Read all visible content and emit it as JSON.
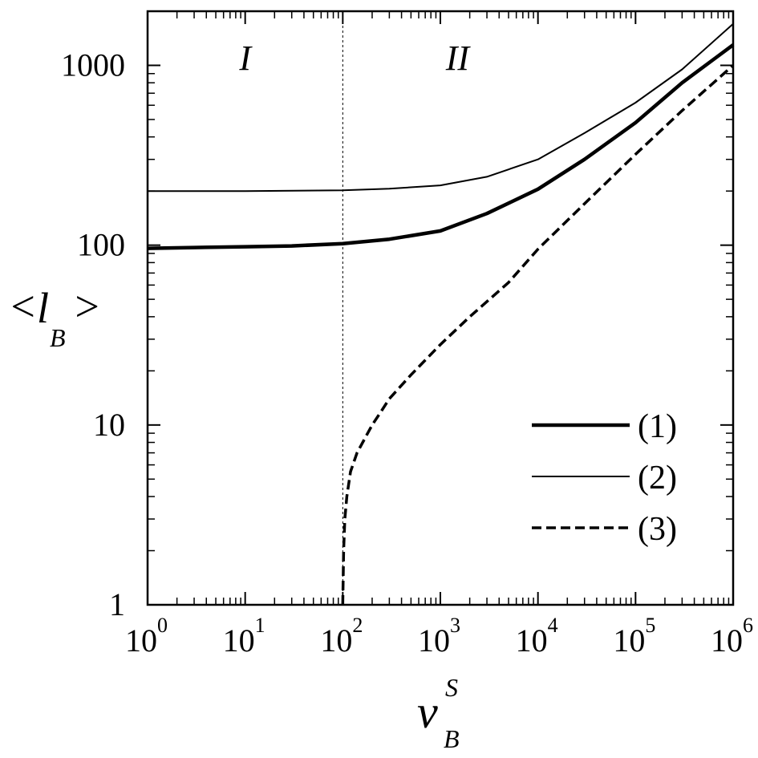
{
  "chart_data": {
    "type": "line",
    "title": "",
    "xscale": "log",
    "yscale": "log",
    "xlim": [
      1,
      1000000
    ],
    "ylim": [
      1,
      2000
    ],
    "xticks": [
      {
        "base": "10",
        "exp": "0"
      },
      {
        "base": "10",
        "exp": "1"
      },
      {
        "base": "10",
        "exp": "2"
      },
      {
        "base": "10",
        "exp": "3"
      },
      {
        "base": "10",
        "exp": "4"
      },
      {
        "base": "10",
        "exp": "5"
      },
      {
        "base": "10",
        "exp": "6"
      }
    ],
    "xtick_values": [
      1,
      10,
      100,
      1000,
      10000,
      100000,
      1000000
    ],
    "yticks": [
      "1",
      "10",
      "100",
      "1000"
    ],
    "ytick_values": [
      1,
      10,
      100,
      1000
    ],
    "xlabel": {
      "main": "v",
      "sup": "S",
      "sub": "B"
    },
    "ylabel": {
      "open": "<",
      "main": "l",
      "sub": "B",
      "close": ">"
    },
    "grid": false,
    "vline_x": 100,
    "regions": [
      {
        "label": "I",
        "x": 10,
        "y": 1100
      },
      {
        "label": "II",
        "x": 1500,
        "y": 1100
      }
    ],
    "legend_position": "lower-right",
    "series": [
      {
        "name": "(1)",
        "style": "thick",
        "x": [
          1,
          3,
          10,
          30,
          100,
          300,
          1000,
          3000,
          10000,
          30000,
          100000,
          300000,
          1000000
        ],
        "y": [
          96,
          97,
          98,
          99,
          102,
          108,
          120,
          150,
          205,
          300,
          480,
          800,
          1300
        ]
      },
      {
        "name": "(2)",
        "style": "thin",
        "x": [
          1,
          10,
          100,
          300,
          1000,
          3000,
          10000,
          30000,
          100000,
          300000,
          1000000
        ],
        "y": [
          200,
          200,
          202,
          206,
          215,
          240,
          300,
          420,
          620,
          950,
          1700
        ]
      },
      {
        "name": "(3)",
        "style": "dashed",
        "x": [
          100,
          102,
          105,
          110,
          120,
          140,
          170,
          200,
          250,
          300,
          500,
          1000,
          2000,
          5000,
          10000,
          30000,
          100000,
          300000,
          1000000
        ],
        "y": [
          1,
          2,
          3,
          4,
          5.5,
          7,
          8.5,
          10,
          12,
          14,
          19,
          28,
          40,
          62,
          95,
          170,
          320,
          560,
          1000
        ]
      }
    ]
  }
}
